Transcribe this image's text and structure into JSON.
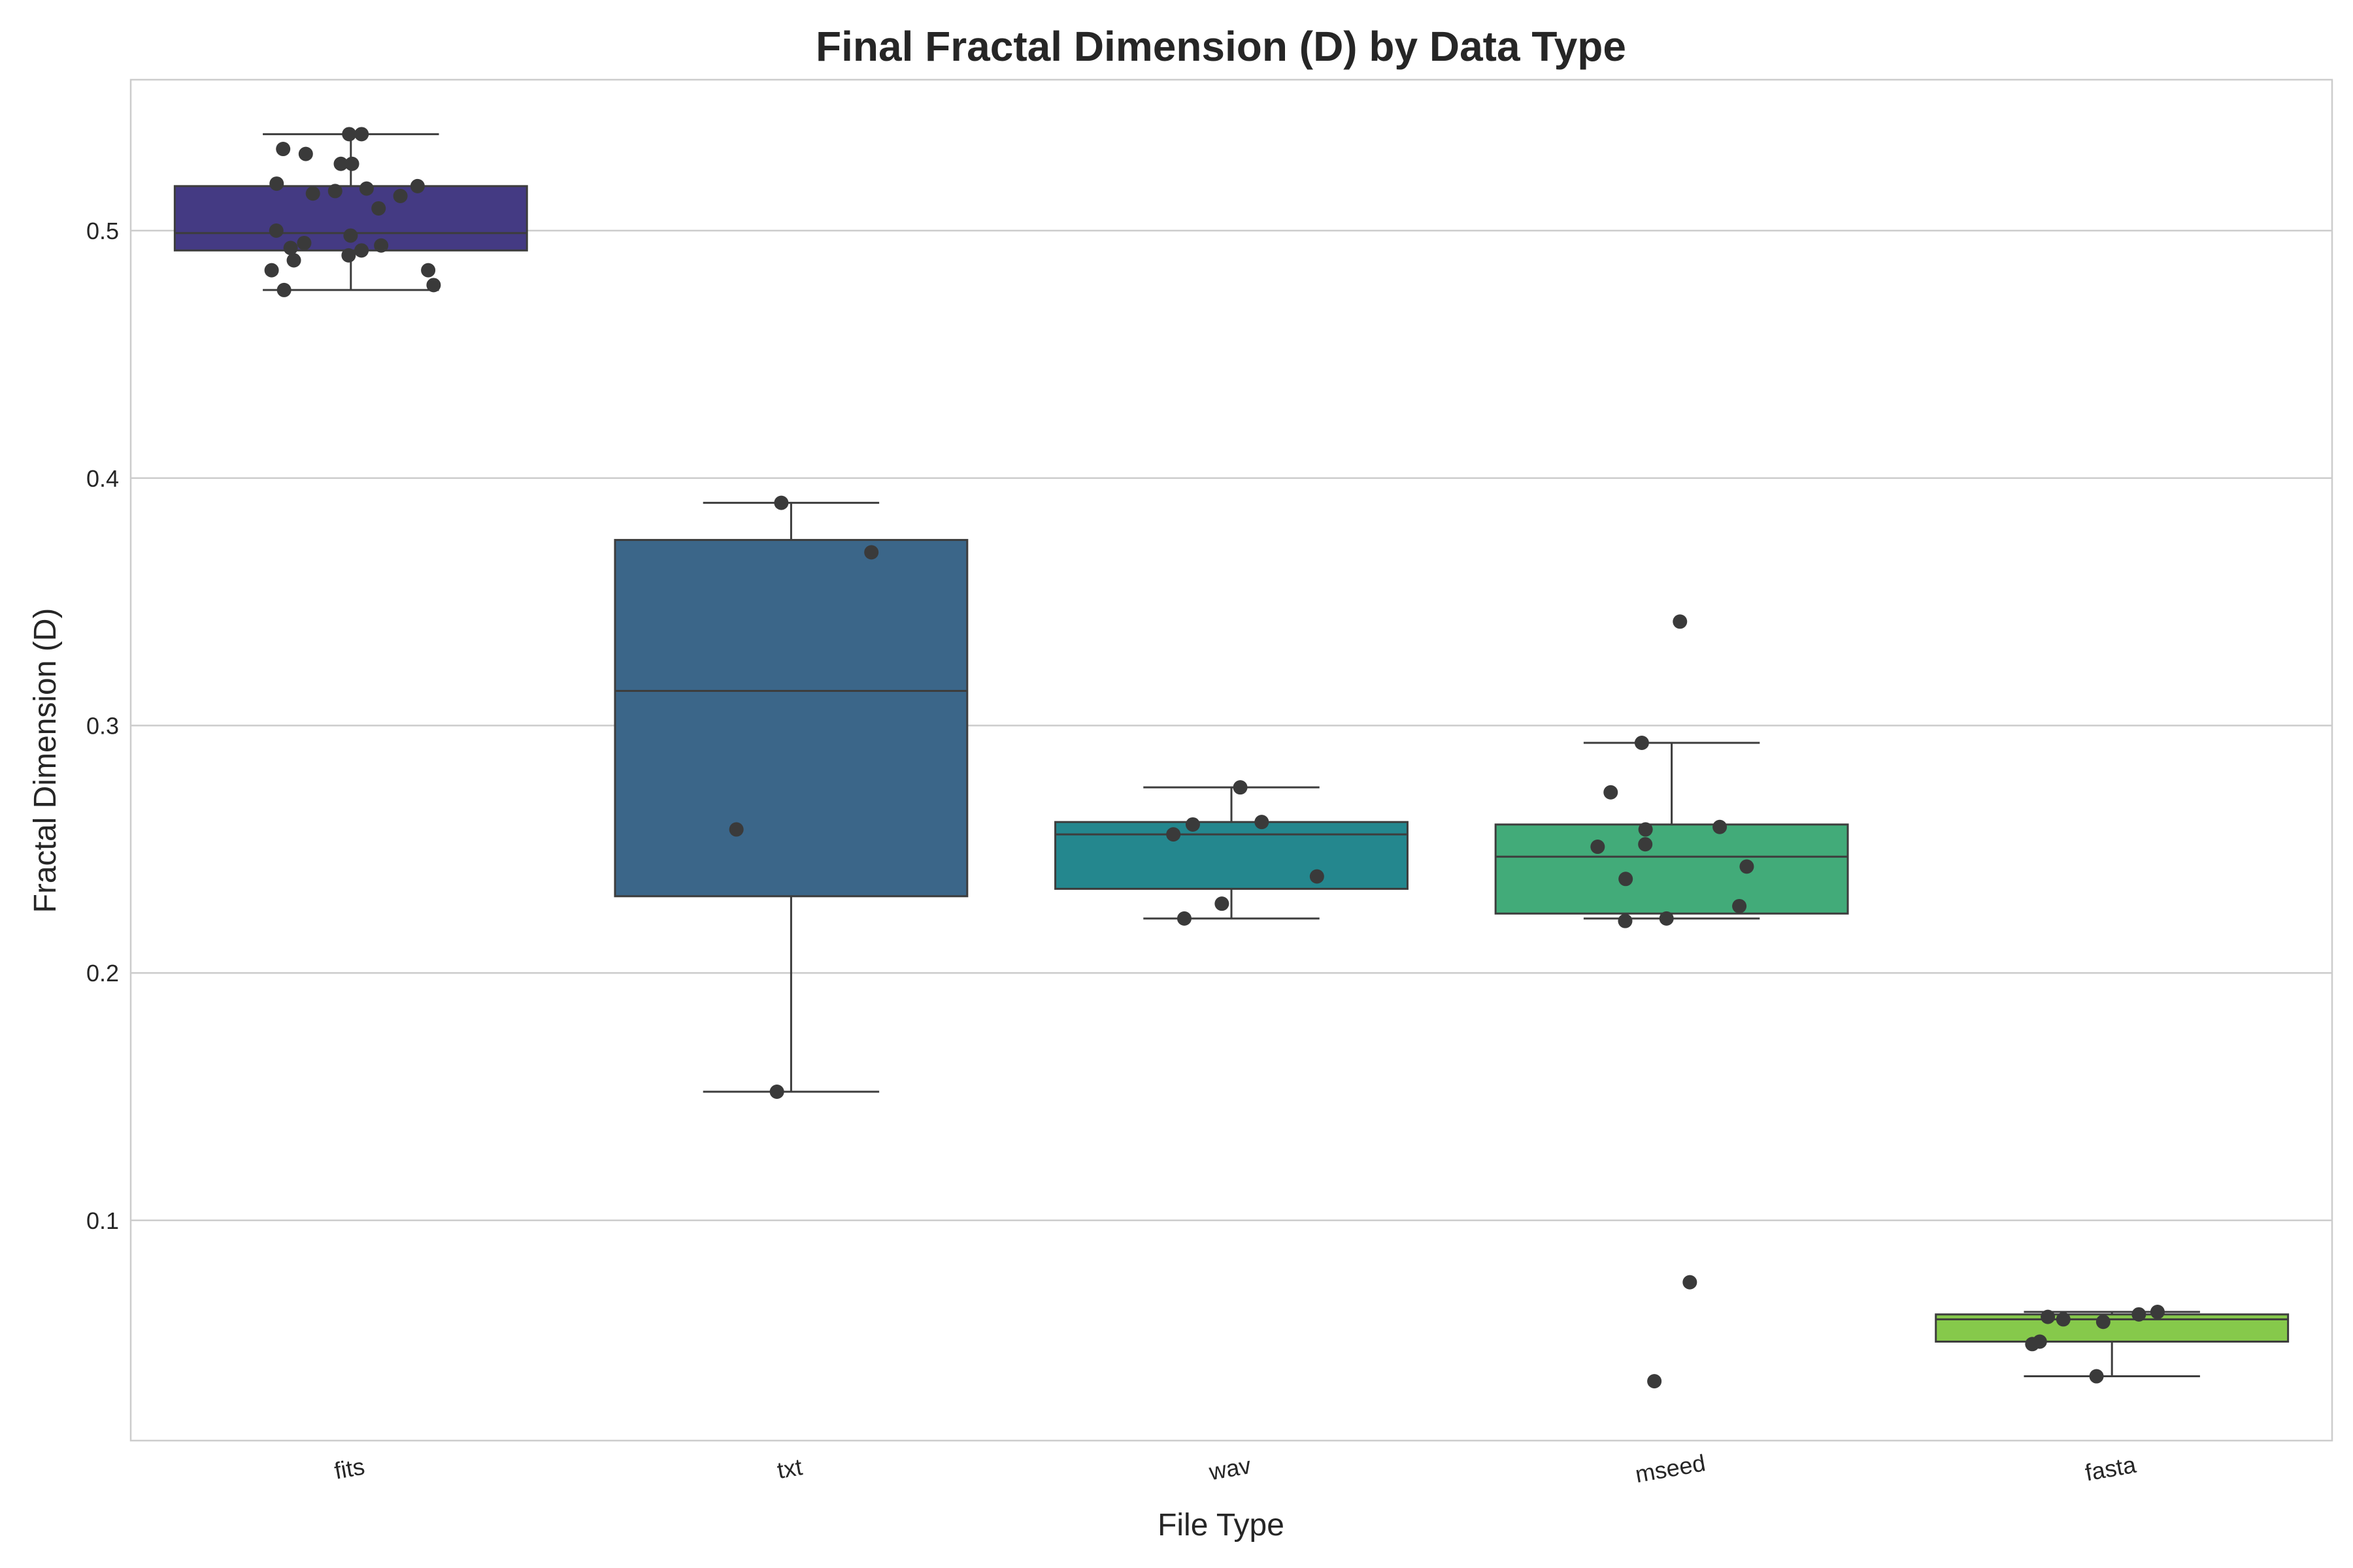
{
  "chart_data": {
    "type": "box",
    "title": "Final Fractal Dimension (D) by Data Type",
    "xlabel": "File Type",
    "ylabel": "Fractal Dimension (D)",
    "ylim": [
      0.011,
      0.561
    ],
    "yticks": [
      0.1,
      0.2,
      0.3,
      0.4,
      0.5
    ],
    "ytick_labels": [
      "0.1",
      "0.2",
      "0.3",
      "0.4",
      "0.5"
    ],
    "grid": "horizontal",
    "categories": [
      "fits",
      "txt",
      "wav",
      "mseed",
      "fasta"
    ],
    "colors": [
      "#443a83",
      "#3b6689",
      "#24878e",
      "#42ab79",
      "#86c94b"
    ],
    "stats": [
      {
        "min": 0.476,
        "q1": 0.492,
        "median": 0.499,
        "q3": 0.518,
        "max": 0.539
      },
      {
        "min": 0.152,
        "q1": 0.231,
        "median": 0.314,
        "q3": 0.375,
        "max": 0.39
      },
      {
        "min": 0.222,
        "q1": 0.234,
        "median": 0.256,
        "q3": 0.261,
        "max": 0.275
      },
      {
        "min": 0.222,
        "q1": 0.224,
        "median": 0.247,
        "q3": 0.26,
        "max": 0.293
      },
      {
        "min": 0.037,
        "q1": 0.051,
        "median": 0.06,
        "q3": 0.062,
        "max": 0.063
      }
    ],
    "points": [
      [
        0.539,
        0.539,
        0.533,
        0.531,
        0.527,
        0.527,
        0.519,
        0.518,
        0.517,
        0.516,
        0.515,
        0.514,
        0.509,
        0.5,
        0.498,
        0.495,
        0.494,
        0.493,
        0.492,
        0.49,
        0.488,
        0.484,
        0.484,
        0.478,
        0.476
      ],
      [
        0.39,
        0.37,
        0.258,
        0.152
      ],
      [
        0.275,
        0.261,
        0.26,
        0.256,
        0.239,
        0.228,
        0.222
      ],
      [
        0.342,
        0.293,
        0.273,
        0.259,
        0.258,
        0.252,
        0.251,
        0.243,
        0.238,
        0.227,
        0.222,
        0.221,
        0.075,
        0.035
      ],
      [
        0.063,
        0.062,
        0.061,
        0.06,
        0.059,
        0.051,
        0.05,
        0.037
      ]
    ]
  }
}
